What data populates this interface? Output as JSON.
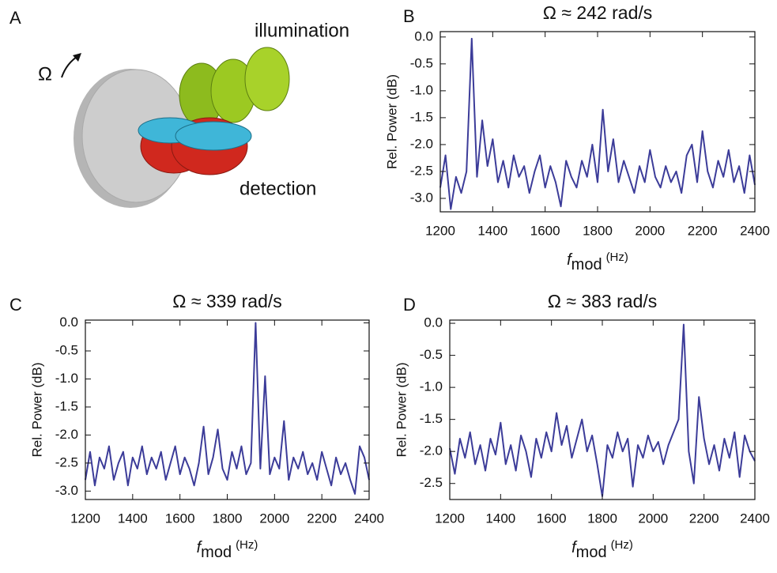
{
  "illustration": {
    "panel": "A",
    "omega": "Ω",
    "illumination": "illumination",
    "detection": "detection"
  },
  "chart_data": [
    {
      "type": "line",
      "panel": "B",
      "title": "Ω ≈ 242 rad/s",
      "x_label": {
        "symbol": "f",
        "subscript": "mod",
        "unit": "(Hz)"
      },
      "y_label": "Rel. Power (dB)",
      "x": [
        1200,
        1220,
        1240,
        1260,
        1280,
        1300,
        1320,
        1340,
        1360,
        1380,
        1400,
        1420,
        1440,
        1460,
        1480,
        1500,
        1520,
        1540,
        1560,
        1580,
        1600,
        1620,
        1640,
        1660,
        1680,
        1700,
        1720,
        1740,
        1760,
        1780,
        1800,
        1820,
        1840,
        1860,
        1880,
        1900,
        1920,
        1940,
        1960,
        1980,
        2000,
        2020,
        2040,
        2060,
        2080,
        2100,
        2120,
        2140,
        2160,
        2180,
        2200,
        2220,
        2240,
        2260,
        2280,
        2300,
        2320,
        2340,
        2360,
        2380,
        2400
      ],
      "series": [
        {
          "color": "#3c3c99",
          "values": [
            -2.8,
            -2.2,
            -3.2,
            -2.6,
            -2.9,
            -2.5,
            -0.03,
            -2.6,
            -1.55,
            -2.4,
            -1.9,
            -2.7,
            -2.3,
            -2.8,
            -2.2,
            -2.6,
            -2.4,
            -2.9,
            -2.5,
            -2.2,
            -2.8,
            -2.4,
            -2.7,
            -3.15,
            -2.3,
            -2.6,
            -2.8,
            -2.3,
            -2.6,
            -2.0,
            -2.7,
            -1.35,
            -2.5,
            -1.9,
            -2.7,
            -2.3,
            -2.6,
            -2.9,
            -2.4,
            -2.7,
            -2.1,
            -2.6,
            -2.8,
            -2.4,
            -2.7,
            -2.5,
            -2.9,
            -2.2,
            -2.0,
            -2.7,
            -1.75,
            -2.5,
            -2.8,
            -2.3,
            -2.6,
            -2.1,
            -2.7,
            -2.4,
            -2.9,
            -2.2,
            -2.75
          ]
        }
      ],
      "xlim": [
        1200,
        2400
      ],
      "xticks": [
        1200,
        1400,
        1600,
        1800,
        2000,
        2200,
        2400
      ],
      "ylim": [
        -3.25,
        0.1
      ],
      "yticks": [
        {
          "value": 0,
          "label": "0.0"
        },
        -0.5,
        {
          "value": -1,
          "label": "-1.0"
        },
        -1.5,
        {
          "value": -2,
          "label": "-2.0"
        },
        -2.5,
        {
          "value": -3,
          "label": "-3.0"
        }
      ]
    },
    {
      "type": "line",
      "panel": "C",
      "title": "Ω ≈ 339 rad/s",
      "x_label": {
        "symbol": "f",
        "subscript": "mod",
        "unit": "(Hz)"
      },
      "y_label": "Rel. Power (dB)",
      "x": [
        1200,
        1220,
        1240,
        1260,
        1280,
        1300,
        1320,
        1340,
        1360,
        1380,
        1400,
        1420,
        1440,
        1460,
        1480,
        1500,
        1520,
        1540,
        1560,
        1580,
        1600,
        1620,
        1640,
        1660,
        1680,
        1700,
        1720,
        1740,
        1760,
        1780,
        1800,
        1820,
        1840,
        1860,
        1880,
        1900,
        1920,
        1940,
        1960,
        1980,
        2000,
        2020,
        2040,
        2060,
        2080,
        2100,
        2120,
        2140,
        2160,
        2180,
        2200,
        2220,
        2240,
        2260,
        2280,
        2300,
        2320,
        2340,
        2360,
        2380,
        2400
      ],
      "series": [
        {
          "color": "#3c3c99",
          "values": [
            -2.8,
            -2.3,
            -2.9,
            -2.4,
            -2.6,
            -2.2,
            -2.8,
            -2.5,
            -2.3,
            -2.9,
            -2.4,
            -2.6,
            -2.2,
            -2.7,
            -2.4,
            -2.6,
            -2.3,
            -2.8,
            -2.5,
            -2.2,
            -2.7,
            -2.4,
            -2.6,
            -2.9,
            -2.5,
            -1.85,
            -2.7,
            -2.4,
            -1.9,
            -2.6,
            -2.8,
            -2.3,
            -2.6,
            -2.2,
            -2.7,
            -2.5,
            0.0,
            -2.6,
            -0.95,
            -2.7,
            -2.4,
            -2.6,
            -1.75,
            -2.8,
            -2.4,
            -2.6,
            -2.3,
            -2.7,
            -2.5,
            -2.8,
            -2.3,
            -2.6,
            -2.9,
            -2.4,
            -2.7,
            -2.5,
            -2.8,
            -3.05,
            -2.2,
            -2.4,
            -2.8
          ]
        }
      ],
      "xlim": [
        1200,
        2400
      ],
      "xticks": [
        1200,
        1400,
        1600,
        1800,
        2000,
        2200,
        2400
      ],
      "ylim": [
        -3.15,
        0.05
      ],
      "yticks": [
        {
          "value": 0,
          "label": "0.0"
        },
        -0.5,
        {
          "value": -1,
          "label": "-1.0"
        },
        -1.5,
        {
          "value": -2,
          "label": "-2.0"
        },
        -2.5,
        {
          "value": -3,
          "label": "-3.0"
        }
      ]
    },
    {
      "type": "line",
      "panel": "D",
      "title": "Ω ≈ 383 rad/s",
      "x_label": {
        "symbol": "f",
        "subscript": "mod",
        "unit": "(Hz)"
      },
      "y_label": "Rel. Power (dB)",
      "x": [
        1200,
        1220,
        1240,
        1260,
        1280,
        1300,
        1320,
        1340,
        1360,
        1380,
        1400,
        1420,
        1440,
        1460,
        1480,
        1500,
        1520,
        1540,
        1560,
        1580,
        1600,
        1620,
        1640,
        1660,
        1680,
        1700,
        1720,
        1740,
        1760,
        1780,
        1800,
        1820,
        1840,
        1860,
        1880,
        1900,
        1920,
        1940,
        1960,
        1980,
        2000,
        2020,
        2040,
        2060,
        2080,
        2100,
        2120,
        2140,
        2160,
        2180,
        2200,
        2220,
        2240,
        2260,
        2280,
        2300,
        2320,
        2340,
        2360,
        2380,
        2400
      ],
      "series": [
        {
          "color": "#3c3c99",
          "values": [
            -1.95,
            -2.35,
            -1.8,
            -2.1,
            -1.7,
            -2.2,
            -1.9,
            -2.3,
            -1.8,
            -2.05,
            -1.55,
            -2.2,
            -1.9,
            -2.3,
            -1.75,
            -2.0,
            -2.4,
            -1.8,
            -2.1,
            -1.7,
            -2.0,
            -1.4,
            -1.9,
            -1.6,
            -2.1,
            -1.8,
            -1.5,
            -2.0,
            -1.75,
            -2.2,
            -2.7,
            -1.9,
            -2.1,
            -1.7,
            -2.0,
            -1.8,
            -2.55,
            -1.9,
            -2.1,
            -1.75,
            -2.0,
            -1.85,
            -2.2,
            -1.9,
            -1.7,
            -1.5,
            -0.02,
            -2.0,
            -2.5,
            -1.15,
            -1.8,
            -2.2,
            -1.9,
            -2.3,
            -1.8,
            -2.1,
            -1.7,
            -2.4,
            -1.75,
            -2.0,
            -2.15
          ]
        }
      ],
      "xlim": [
        1200,
        2400
      ],
      "xticks": [
        1200,
        1400,
        1600,
        1800,
        2000,
        2200,
        2400
      ],
      "ylim": [
        -2.75,
        0.05
      ],
      "yticks": [
        {
          "value": 0,
          "label": "0.0"
        },
        -0.5,
        {
          "value": -1,
          "label": "-1.0"
        },
        -1.5,
        {
          "value": -2,
          "label": "-2.0"
        },
        -2.5
      ]
    }
  ]
}
